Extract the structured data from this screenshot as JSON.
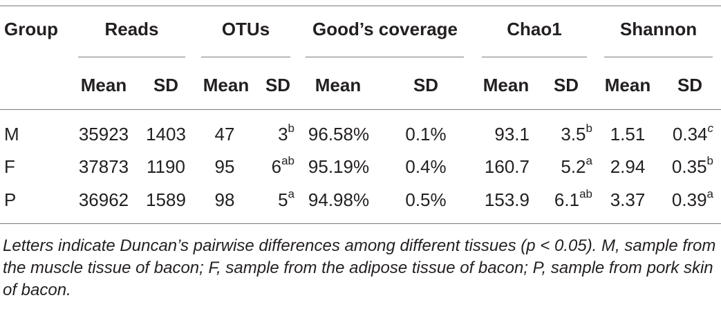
{
  "table": {
    "header": {
      "group": "Group",
      "reads": "Reads",
      "otus": "OTUs",
      "goods_coverage": "Good’s coverage",
      "chao1": "Chao1",
      "shannon": "Shannon",
      "mean": "Mean",
      "sd": "SD"
    },
    "rows": [
      {
        "group": "M",
        "reads_mean": "35923",
        "reads_sd": "1403",
        "otus_mean": "47",
        "otus_sd": "3",
        "otus_sd_sup": "b",
        "gc_mean": "96.58%",
        "gc_sd": "0.1%",
        "chao1_mean": "93.1",
        "chao1_sd": "3.5",
        "chao1_sd_sup": "b",
        "shannon_mean": "1.51",
        "shannon_sd": "0.34",
        "shannon_sd_sup": "c"
      },
      {
        "group": "F",
        "reads_mean": "37873",
        "reads_sd": "1190",
        "otus_mean": "95",
        "otus_sd": "6",
        "otus_sd_sup": "ab",
        "gc_mean": "95.19%",
        "gc_sd": "0.4%",
        "chao1_mean": "160.7",
        "chao1_sd": "5.2",
        "chao1_sd_sup": "a",
        "shannon_mean": "2.94",
        "shannon_sd": "0.35",
        "shannon_sd_sup": "b"
      },
      {
        "group": "P",
        "reads_mean": "36962",
        "reads_sd": "1589",
        "otus_mean": "98",
        "otus_sd": "5",
        "otus_sd_sup": "a",
        "gc_mean": "94.98%",
        "gc_sd": "0.5%",
        "chao1_mean": "153.9",
        "chao1_sd": "6.1",
        "chao1_sd_sup": "ab",
        "shannon_mean": "3.37",
        "shannon_sd": "0.39",
        "shannon_sd_sup": "a"
      }
    ],
    "footnote": "Letters indicate Duncan’s pairwise differences among different tissues (p < 0.05). M, sample from the muscle tissue of bacon; F, sample from the adipose tissue of bacon; P, sample from pork skin of bacon."
  }
}
